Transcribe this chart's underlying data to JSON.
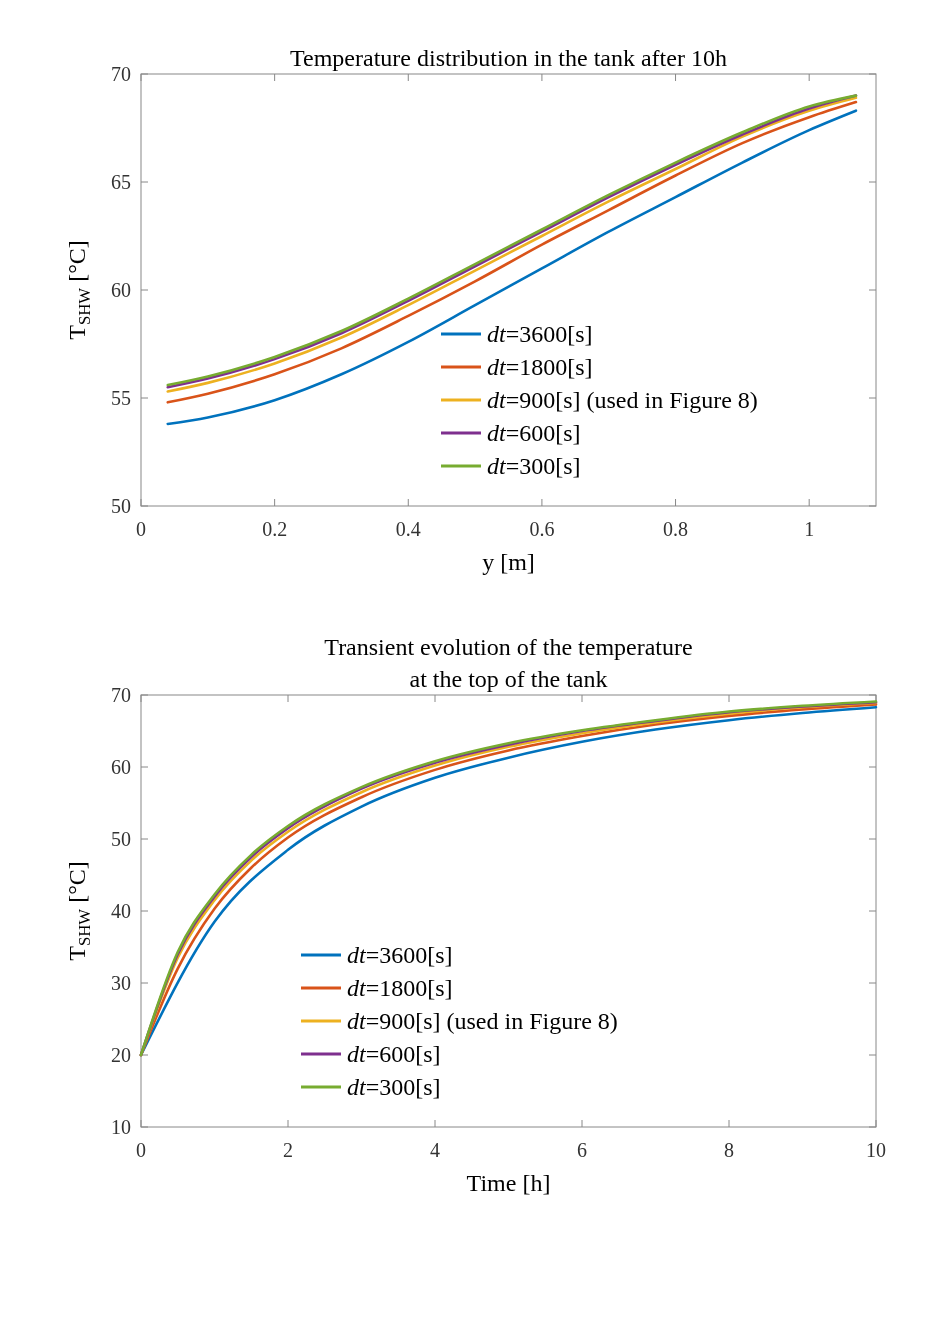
{
  "chart_data": [
    {
      "type": "line",
      "title": "Temperature distribution in the tank after 10h",
      "xlabel": "y [m]",
      "ylabel": "T$_{SHW}$ [°C]",
      "x": [
        0.04,
        0.1,
        0.2,
        0.3,
        0.4,
        0.5,
        0.6,
        0.7,
        0.8,
        0.9,
        1.0,
        1.07
      ],
      "xlim": [
        0,
        1.1
      ],
      "xticks": [
        0,
        0.2,
        0.4,
        0.6,
        0.8,
        1
      ],
      "ylim": [
        50,
        70
      ],
      "yticks": [
        50,
        55,
        60,
        65,
        70
      ],
      "grid": false,
      "legend": "bottom right",
      "series": [
        {
          "name": "dt=3600[s]",
          "color": "#0072bd",
          "values": [
            53.8,
            54.1,
            54.9,
            56.1,
            57.6,
            59.3,
            61.0,
            62.7,
            64.3,
            65.9,
            67.4,
            68.3
          ]
        },
        {
          "name": "dt=1800[s]",
          "color": "#d95319",
          "values": [
            54.8,
            55.2,
            56.1,
            57.3,
            58.8,
            60.4,
            62.1,
            63.7,
            65.3,
            66.8,
            68.0,
            68.7
          ]
        },
        {
          "name": "dt=900[s] (used in Figure 8)",
          "color": "#edb120",
          "values": [
            55.3,
            55.7,
            56.6,
            57.8,
            59.3,
            60.9,
            62.5,
            64.1,
            65.6,
            67.1,
            68.3,
            68.9
          ]
        },
        {
          "name": "dt=600[s]",
          "color": "#7e2f8e",
          "values": [
            55.5,
            55.9,
            56.8,
            58.0,
            59.5,
            61.1,
            62.7,
            64.3,
            65.8,
            67.2,
            68.4,
            69.0
          ]
        },
        {
          "name": "dt=300[s]",
          "color": "#77ac30",
          "values": [
            55.6,
            56.0,
            56.9,
            58.1,
            59.6,
            61.2,
            62.8,
            64.4,
            65.9,
            67.3,
            68.5,
            69.0
          ]
        }
      ]
    },
    {
      "type": "line",
      "title": "Transient evolution of the temperature\nat the top of the tank",
      "xlabel": "Time [h]",
      "ylabel": "T$_{SHW}$ [°C]",
      "xlim": [
        0,
        10
      ],
      "xticks": [
        0,
        2,
        4,
        6,
        8,
        10
      ],
      "ylim": [
        10,
        70
      ],
      "yticks": [
        10,
        20,
        30,
        40,
        50,
        60,
        70
      ],
      "grid": false,
      "legend": "bottom left",
      "series": [
        {
          "name": "dt=3600[s]",
          "color": "#0072bd",
          "x": [
            0,
            1,
            2,
            3,
            4,
            5,
            6,
            7,
            8,
            9,
            10
          ],
          "values": [
            20,
            38.5,
            48.5,
            54.5,
            58.5,
            61.3,
            63.5,
            65.2,
            66.5,
            67.5,
            68.3
          ]
        },
        {
          "name": "dt=1800[s]",
          "color": "#d95319",
          "x": [
            0,
            0.5,
            1,
            1.5,
            2,
            3,
            4,
            5,
            6,
            7,
            8,
            9,
            10
          ],
          "values": [
            20,
            32,
            40.3,
            46,
            50.2,
            55.8,
            59.6,
            62.3,
            64.3,
            65.9,
            67.1,
            68,
            68.7
          ]
        },
        {
          "name": "dt=900[s] (used in Figure 8)",
          "color": "#edb120",
          "x": [
            0,
            0.5,
            1,
            1.5,
            2,
            3,
            4,
            5,
            6,
            7,
            8,
            9,
            10
          ],
          "values": [
            20,
            33.5,
            41.5,
            47,
            51,
            56.5,
            60.2,
            62.8,
            64.7,
            66.2,
            67.4,
            68.3,
            68.9
          ]
        },
        {
          "name": "dt=600[s]",
          "color": "#7e2f8e",
          "x": [
            0,
            0.5,
            1,
            1.5,
            2,
            3,
            4,
            5,
            6,
            7,
            8,
            9,
            10
          ],
          "values": [
            20,
            34,
            42,
            47.5,
            51.5,
            57,
            60.6,
            63.1,
            65,
            66.4,
            67.6,
            68.4,
            69
          ]
        },
        {
          "name": "dt=300[s]",
          "color": "#77ac30",
          "x": [
            0,
            0.5,
            1,
            1.5,
            2,
            3,
            4,
            5,
            6,
            7,
            8,
            9,
            10
          ],
          "values": [
            20,
            34.3,
            42.3,
            47.8,
            51.8,
            57.2,
            60.8,
            63.3,
            65.1,
            66.5,
            67.7,
            68.5,
            69.1
          ]
        }
      ]
    }
  ]
}
